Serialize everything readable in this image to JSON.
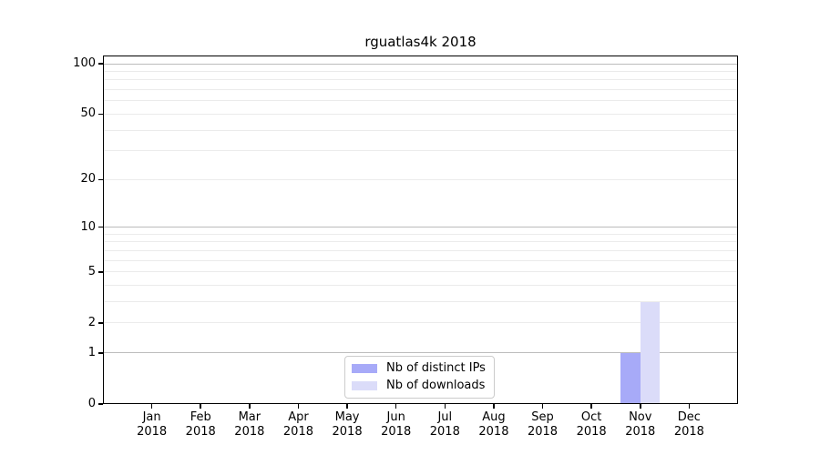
{
  "chart_data": {
    "type": "bar",
    "title": "rguatlas4k 2018",
    "categories": [
      {
        "month": "Jan",
        "year": "2018"
      },
      {
        "month": "Feb",
        "year": "2018"
      },
      {
        "month": "Mar",
        "year": "2018"
      },
      {
        "month": "Apr",
        "year": "2018"
      },
      {
        "month": "May",
        "year": "2018"
      },
      {
        "month": "Jun",
        "year": "2018"
      },
      {
        "month": "Jul",
        "year": "2018"
      },
      {
        "month": "Aug",
        "year": "2018"
      },
      {
        "month": "Sep",
        "year": "2018"
      },
      {
        "month": "Oct",
        "year": "2018"
      },
      {
        "month": "Nov",
        "year": "2018"
      },
      {
        "month": "Dec",
        "year": "2018"
      }
    ],
    "series": [
      {
        "name": "Nb of distinct IPs",
        "color": "#a7aaf8",
        "values": [
          0,
          0,
          0,
          0,
          0,
          0,
          0,
          0,
          0,
          0,
          1,
          0
        ]
      },
      {
        "name": "Nb of downloads",
        "color": "#dbdcf9",
        "values": [
          0,
          0,
          0,
          0,
          0,
          0,
          0,
          0,
          0,
          0,
          3,
          0
        ]
      }
    ],
    "y_scale": "log1p",
    "ylim": [
      0,
      112
    ],
    "y_ticks": [
      0,
      1,
      2,
      5,
      10,
      20,
      50,
      100
    ],
    "major_gridlines": [
      1,
      10,
      100
    ],
    "minor_gridlines": [
      2,
      3,
      4,
      5,
      6,
      7,
      8,
      9,
      20,
      30,
      40,
      50,
      60,
      70,
      80,
      90
    ],
    "grid": true,
    "legend_position": "lower center",
    "colors": {
      "major_grid": "#bcbcbc",
      "minor_grid": "#ebebeb",
      "axis": "#000000",
      "text": "#000000"
    }
  }
}
